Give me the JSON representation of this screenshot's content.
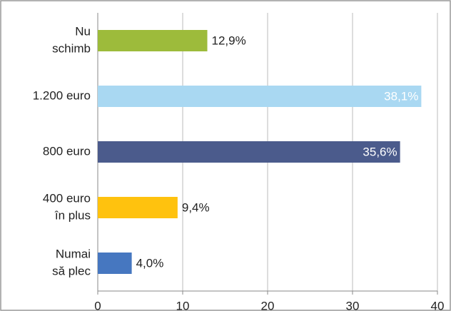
{
  "chart_data": {
    "type": "bar",
    "orientation": "horizontal",
    "categories": [
      [
        "Nu",
        "schimb"
      ],
      [
        "1.200 euro"
      ],
      [
        "800 euro"
      ],
      [
        "400 euro",
        "în plus"
      ],
      [
        "Numai",
        "să plec"
      ]
    ],
    "values": [
      12.9,
      38.1,
      35.6,
      9.4,
      4.0
    ],
    "value_labels": [
      "12,9%",
      "38,1%",
      "35,6%",
      "9,4%",
      "4,0%"
    ],
    "colors": [
      "#9dbb3b",
      "#a9d8f2",
      "#4b5b8c",
      "#ffc20e",
      "#4677c0"
    ],
    "xlim": [
      0,
      40
    ],
    "xticks": [
      0,
      10,
      20,
      30,
      40
    ],
    "grid": true
  }
}
